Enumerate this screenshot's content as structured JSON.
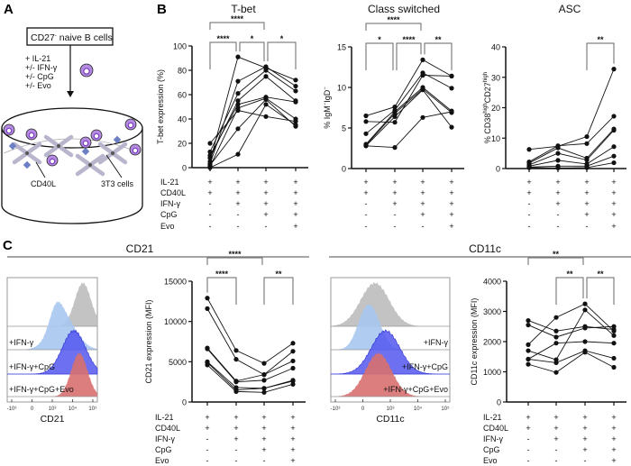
{
  "panel_letters": {
    "a": "A",
    "b": "B",
    "c": "C"
  },
  "diagram": {
    "box_label": "CD27",
    "box_label_sup": "-",
    "box_label_rest": " naive B cells",
    "treatments": [
      "+ IL-21",
      "+/- IFN-γ",
      "+/- CpG",
      "+/- Evo"
    ],
    "cd40l_label": "CD40L",
    "cells_label": "3T3 cells",
    "colors": {
      "b_cell": "#b48be0",
      "b_cell_nucleus": "#7b3fc4",
      "cd40l": "#6c7fc4",
      "fibroblast": "#b8b5cc"
    }
  },
  "conditions": {
    "row_labels": [
      "IL-21",
      "CD40L",
      "IFN-γ",
      "CpG",
      "Evo"
    ],
    "columns": [
      [
        "+",
        "+",
        "-",
        "-",
        "-"
      ],
      [
        "+",
        "+",
        "+",
        "-",
        "-"
      ],
      [
        "+",
        "+",
        "+",
        "+",
        "-"
      ],
      [
        "+",
        "+",
        "+",
        "+",
        "+"
      ]
    ]
  },
  "section_c": {
    "cd21_header": "CD21",
    "cd11c_header": "CD11c",
    "histogram_lanes": [
      "",
      "+IFN-γ",
      "+IFN-γ+CpG",
      "+IFN-γ+CpG+Evo"
    ],
    "histogram_colors": [
      "#bdbdbd",
      "#a9c6ef",
      "#5257ee",
      "#d8706f"
    ],
    "histogram_ticks": [
      "-10³",
      "0",
      "10³",
      "10⁴",
      "10⁵"
    ],
    "cd21_axis": "CD21",
    "cd11c_axis": "CD11c"
  },
  "chart_data": [
    {
      "id": "tbet",
      "type": "line",
      "title": "T-bet",
      "ylabel": "T-bet expression (%)",
      "ylim": [
        0,
        100
      ],
      "yticks": [
        "0",
        "20",
        "40",
        "60",
        "80",
        "100"
      ],
      "show_row_labels": true,
      "categories": [
        "IL-21+CD40L",
        "+IFN-γ",
        "+IFN-γ+CpG",
        "+IFN-γ+CpG+Evo"
      ],
      "series": [
        {
          "values": [
            5,
            91,
            82,
            72
          ]
        },
        {
          "values": [
            3,
            71,
            83,
            67
          ]
        },
        {
          "values": [
            13,
            61,
            80,
            63
          ]
        },
        {
          "values": [
            8,
            55,
            75,
            55
          ]
        },
        {
          "values": [
            10,
            52,
            58,
            54
          ]
        },
        {
          "values": [
            20,
            47,
            42,
            38
          ]
        },
        {
          "values": [
            1,
            49,
            57,
            40
          ]
        },
        {
          "values": [
            0,
            11,
            52,
            35
          ]
        },
        {
          "values": [
            2,
            32,
            56,
            34
          ]
        }
      ],
      "significance": [
        {
          "from": 0,
          "to": 2,
          "label": "****"
        },
        {
          "from": 0,
          "to": 1,
          "label": "****"
        },
        {
          "from": 1,
          "to": 2,
          "label": "*"
        },
        {
          "from": 2,
          "to": 3,
          "label": "*"
        }
      ]
    },
    {
      "id": "cs",
      "type": "line",
      "title": "Class switched",
      "ylabel_parts": [
        "% IgM",
        "−",
        "IgD",
        "−"
      ],
      "ylim": [
        0,
        15
      ],
      "yticks": [
        "0",
        "5",
        "10",
        "15"
      ],
      "show_row_labels": false,
      "categories": [
        "IL-21+CD40L",
        "+IFN-γ",
        "+IFN-γ+CpG",
        "+IFN-γ+CpG+Evo"
      ],
      "series": [
        {
          "values": [
            6.5,
            7.6,
            13.4,
            11.4
          ]
        },
        {
          "values": [
            5.8,
            5.7,
            11.5,
            11.4
          ]
        },
        {
          "values": [
            4.3,
            7.2,
            11.8,
            9.9
          ]
        },
        {
          "values": [
            3.0,
            7.0,
            10.0,
            7.1
          ]
        },
        {
          "values": [
            2.9,
            6.8,
            9.8,
            6.9
          ]
        },
        {
          "values": [
            2.8,
            6.4,
            9.7,
            5.1
          ]
        },
        {
          "values": [
            2.8,
            2.6,
            6.3,
            7.0
          ]
        }
      ],
      "significance": [
        {
          "from": 0,
          "to": 2,
          "label": "****"
        },
        {
          "from": 0,
          "to": 1,
          "label": "*"
        },
        {
          "from": 1,
          "to": 2,
          "label": "****"
        },
        {
          "from": 2,
          "to": 3,
          "label": "**"
        }
      ]
    },
    {
      "id": "asc",
      "type": "line",
      "title": "ASC",
      "ylabel_parts": [
        "% CD38",
        "high",
        "CD27",
        "high"
      ],
      "ylim": [
        0,
        40
      ],
      "yticks": [
        "0",
        "10",
        "20",
        "30",
        "40"
      ],
      "show_row_labels": false,
      "categories": [
        "IL-21+CD40L",
        "+IFN-γ",
        "+IFN-γ+CpG",
        "+IFN-γ+CpG+Evo"
      ],
      "series": [
        {
          "values": [
            6.3,
            7.3,
            10.5,
            32.7
          ]
        },
        {
          "values": [
            2.2,
            7.5,
            8.2,
            17.2
          ]
        },
        {
          "values": [
            1.8,
            6.8,
            3.4,
            13.0
          ]
        },
        {
          "values": [
            1.2,
            5.0,
            2.8,
            12.6
          ]
        },
        {
          "values": [
            0.8,
            2.7,
            1.5,
            7.2
          ]
        },
        {
          "values": [
            0.5,
            0.8,
            0.8,
            4.1
          ]
        },
        {
          "values": [
            0.3,
            0.2,
            0.3,
            1.9
          ]
        }
      ],
      "significance": [
        {
          "from": 2,
          "to": 3,
          "label": "**"
        }
      ]
    },
    {
      "id": "cd21",
      "type": "line",
      "title": "",
      "ylabel": "CD21 expression (MFI)",
      "ylim": [
        0,
        15000
      ],
      "yticks": [
        "0",
        "5000",
        "10000",
        "15000"
      ],
      "show_row_labels": true,
      "categories": [
        "IL-21+CD40L",
        "+IFN-γ",
        "+IFN-γ+CpG",
        "+IFN-γ+CpG+Evo"
      ],
      "series": [
        {
          "values": [
            12900,
            6400,
            4800,
            7300
          ]
        },
        {
          "values": [
            11600,
            5300,
            3400,
            6300
          ]
        },
        {
          "values": [
            6700,
            2600,
            3400,
            5100
          ]
        },
        {
          "values": [
            6600,
            2500,
            2700,
            4200
          ]
        },
        {
          "values": [
            5000,
            1800,
            1700,
            2700
          ]
        },
        {
          "values": [
            4900,
            1500,
            1700,
            2600
          ]
        },
        {
          "values": [
            4600,
            1300,
            1200,
            2200
          ]
        }
      ],
      "significance": [
        {
          "from": 0,
          "to": 2,
          "label": "****"
        },
        {
          "from": 0,
          "to": 1,
          "label": "****"
        },
        {
          "from": 2,
          "to": 3,
          "label": "**"
        }
      ]
    },
    {
      "id": "cd11c",
      "type": "line",
      "title": "",
      "ylabel": "CD11c expression (MFI)",
      "ylim": [
        0,
        4000
      ],
      "yticks": [
        "0",
        "1000",
        "2000",
        "3000",
        "4000"
      ],
      "show_row_labels": true,
      "categories": [
        "IL-21+CD40L",
        "+IFN-γ",
        "+IFN-γ+CpG",
        "+IFN-γ+CpG+Evo"
      ],
      "series": [
        {
          "values": [
            2700,
            2350,
            2500,
            2400
          ]
        },
        {
          "values": [
            2550,
            2150,
            2450,
            2500
          ]
        },
        {
          "values": [
            1900,
            2800,
            3250,
            2350
          ]
        },
        {
          "values": [
            1700,
            1400,
            3050,
            2200
          ]
        },
        {
          "values": [
            1420,
            1950,
            2000,
            1950
          ]
        },
        {
          "values": [
            1420,
            1300,
            1700,
            1450
          ]
        },
        {
          "values": [
            1250,
            980,
            1650,
            1150
          ]
        }
      ],
      "significance": [
        {
          "from": 0,
          "to": 2,
          "label": "**"
        },
        {
          "from": 1,
          "to": 2,
          "label": "**"
        },
        {
          "from": 2,
          "to": 3,
          "label": "**"
        }
      ]
    }
  ]
}
